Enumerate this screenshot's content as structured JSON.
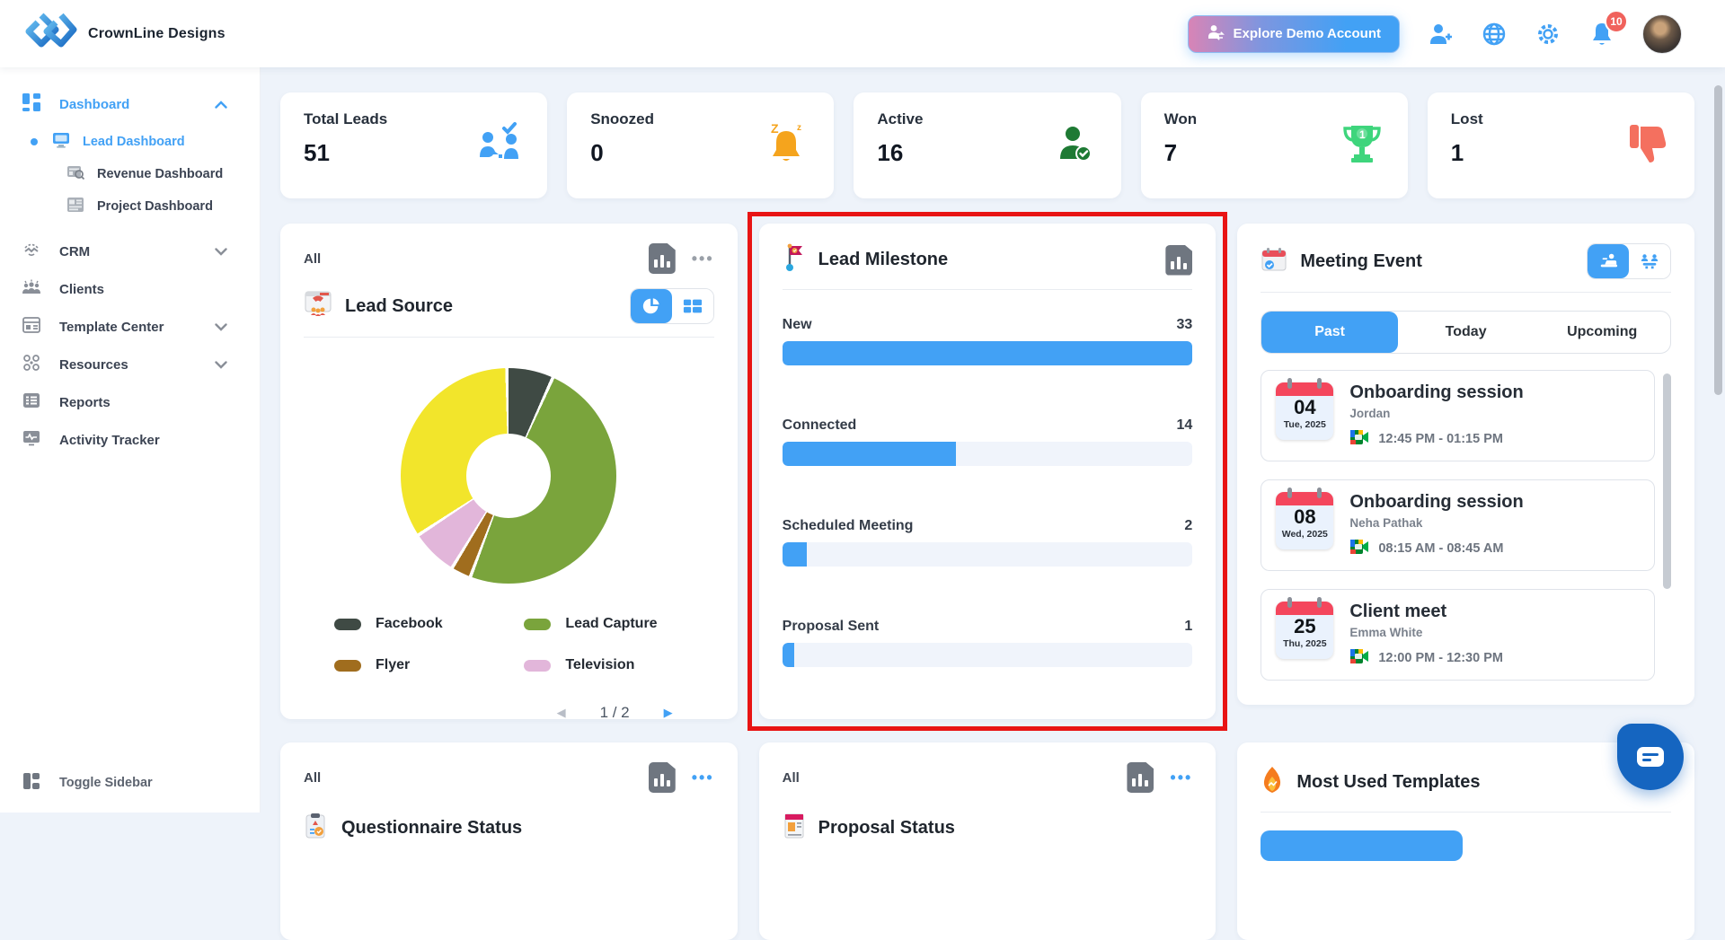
{
  "header": {
    "brand": "CrownLine Designs",
    "explore_button_label": "Explore Demo Account",
    "notification_count": "10",
    "icons": [
      "add-user-icon",
      "globe-icon",
      "gear-icon",
      "bell-icon",
      "avatar"
    ]
  },
  "sidebar": {
    "dashboard_label": "Dashboard",
    "sub_items": [
      {
        "label": "Lead Dashboard",
        "active": true
      },
      {
        "label": "Revenue Dashboard",
        "active": false
      },
      {
        "label": "Project Dashboard",
        "active": false
      }
    ],
    "items": [
      {
        "label": "CRM",
        "has_chevron": true
      },
      {
        "label": "Clients",
        "has_chevron": false
      },
      {
        "label": "Template Center",
        "has_chevron": true
      },
      {
        "label": "Resources",
        "has_chevron": true
      },
      {
        "label": "Reports",
        "has_chevron": false
      },
      {
        "label": "Activity Tracker",
        "has_chevron": false
      }
    ],
    "toggle_label": "Toggle Sidebar"
  },
  "stats": [
    {
      "label": "Total Leads",
      "value": "51",
      "icon": "leads-people-check-icon",
      "color": "#42a1f5"
    },
    {
      "label": "Snoozed",
      "value": "0",
      "icon": "snooze-bell-icon",
      "color": "#f5a41d"
    },
    {
      "label": "Active",
      "value": "16",
      "icon": "active-person-check-icon",
      "color": "#1e7a34"
    },
    {
      "label": "Won",
      "value": "7",
      "icon": "trophy-icon",
      "color": "#3ed57c"
    },
    {
      "label": "Lost",
      "value": "1",
      "icon": "thumbs-down-icon",
      "color": "#f4705f"
    }
  ],
  "lead_source": {
    "filter_label": "All",
    "title": "Lead Source",
    "legend": [
      {
        "label": "Facebook",
        "color": "#3f4a44"
      },
      {
        "label": "Lead Capture",
        "color": "#7aa43c"
      },
      {
        "label": "Flyer",
        "color": "#a06d1e"
      },
      {
        "label": "Television",
        "color": "#e2b6da"
      }
    ],
    "pagination": "1 / 2",
    "prev_arrow": "◀",
    "next_arrow": "▶"
  },
  "lead_milestone": {
    "title": "Lead Milestone",
    "rows": [
      {
        "label": "New",
        "value": "33"
      },
      {
        "label": "Connected",
        "value": "14"
      },
      {
        "label": "Scheduled Meeting",
        "value": "2"
      },
      {
        "label": "Proposal Sent",
        "value": "1"
      }
    ]
  },
  "meeting_event": {
    "title": "Meeting Event",
    "tabs": [
      {
        "label": "Past",
        "active": true
      },
      {
        "label": "Today",
        "active": false
      },
      {
        "label": "Upcoming",
        "active": false
      }
    ],
    "events": [
      {
        "day": "04",
        "date_label": "Tue, 2025",
        "title": "Onboarding session",
        "person": "Jordan",
        "time": "12:45 PM - 01:15 PM"
      },
      {
        "day": "08",
        "date_label": "Wed, 2025",
        "title": "Onboarding session",
        "person": "Neha Pathak",
        "time": "08:15 AM - 08:45 AM"
      },
      {
        "day": "25",
        "date_label": "Thu, 2025",
        "title": "Client meet",
        "person": "Emma White",
        "time": "12:00 PM - 12:30 PM"
      }
    ]
  },
  "bottom": {
    "questionnaire": {
      "filter_label": "All",
      "title": "Questionnaire Status"
    },
    "proposal": {
      "filter_label": "All",
      "title": "Proposal Status"
    },
    "templates": {
      "title": "Most Used Templates"
    }
  },
  "chart_data": [
    {
      "type": "pie",
      "title": "Lead Source",
      "donut": true,
      "legend_position": "bottom",
      "segments": [
        {
          "label": "Facebook",
          "color": "#3f4a44",
          "percent": 7
        },
        {
          "label": "Lead Capture",
          "color": "#7aa43c",
          "percent": 49
        },
        {
          "label": "Flyer",
          "color": "#a06d1e",
          "percent": 3
        },
        {
          "label": "Television",
          "color": "#e2b6da",
          "percent": 7
        },
        {
          "label": "",
          "color": "#f2e52b",
          "percent": 34
        }
      ],
      "pagination": "1 / 2"
    },
    {
      "type": "bar",
      "title": "Lead Milestone",
      "orientation": "horizontal",
      "categories": [
        "New",
        "Connected",
        "Scheduled Meeting",
        "Proposal Sent"
      ],
      "values": [
        33,
        14,
        2,
        1
      ],
      "bar_color": "#42a1f5",
      "xlim": [
        0,
        33
      ],
      "grid": false
    }
  ]
}
